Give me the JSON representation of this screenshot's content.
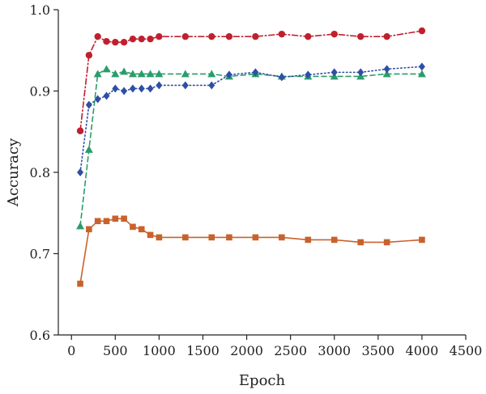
{
  "chart_data": {
    "type": "line",
    "xlabel": "Epoch",
    "ylabel": "Accuracy",
    "xlim": [
      -150,
      4500
    ],
    "ylim": [
      0.6,
      1.0
    ],
    "xticks": [
      0,
      500,
      1000,
      1500,
      2000,
      2500,
      3000,
      3500,
      4000,
      4500
    ],
    "yticks": [
      0.6,
      0.7,
      0.8,
      0.9,
      1.0
    ],
    "xtick_labels": [
      "0",
      "500",
      "1000",
      "1500",
      "2000",
      "2500",
      "3000",
      "3500",
      "4000",
      "4500"
    ],
    "ytick_labels": [
      "0.6",
      "0.7",
      "0.8",
      "0.9",
      "1.0"
    ],
    "grid": false,
    "series": [
      {
        "color": "#c0202e",
        "marker": "circle",
        "dash": "dashdot",
        "x": [
          100,
          200,
          300,
          400,
          500,
          600,
          700,
          800,
          900,
          1000,
          1300,
          1600,
          1800,
          2100,
          2400,
          2700,
          3000,
          3300,
          3600,
          4000
        ],
        "y": [
          0.851,
          0.944,
          0.967,
          0.961,
          0.96,
          0.96,
          0.964,
          0.964,
          0.964,
          0.967,
          0.967,
          0.967,
          0.967,
          0.967,
          0.97,
          0.967,
          0.97,
          0.967,
          0.967,
          0.974
        ]
      },
      {
        "color": "#2a9d6a",
        "marker": "triangle",
        "dash": "dashed",
        "x": [
          100,
          200,
          300,
          400,
          500,
          600,
          700,
          800,
          900,
          1000,
          1300,
          1600,
          1800,
          2100,
          2400,
          2700,
          3000,
          3300,
          3600,
          4000
        ],
        "y": [
          0.734,
          0.828,
          0.921,
          0.927,
          0.921,
          0.924,
          0.921,
          0.921,
          0.921,
          0.921,
          0.921,
          0.921,
          0.918,
          0.921,
          0.918,
          0.918,
          0.918,
          0.918,
          0.921,
          0.921
        ]
      },
      {
        "color": "#2f4fa6",
        "marker": "diamond",
        "dash": "dotted",
        "x": [
          100,
          200,
          300,
          400,
          500,
          600,
          700,
          800,
          900,
          1000,
          1300,
          1600,
          1800,
          2100,
          2400,
          2700,
          3000,
          3300,
          3600,
          4000
        ],
        "y": [
          0.8,
          0.883,
          0.89,
          0.894,
          0.903,
          0.9,
          0.903,
          0.903,
          0.903,
          0.907,
          0.907,
          0.907,
          0.92,
          0.923,
          0.917,
          0.92,
          0.923,
          0.923,
          0.927,
          0.93
        ]
      },
      {
        "color": "#c8622c",
        "marker": "square",
        "dash": "solid",
        "x": [
          100,
          200,
          300,
          400,
          500,
          600,
          700,
          800,
          900,
          1000,
          1300,
          1600,
          1800,
          2100,
          2400,
          2700,
          3000,
          3300,
          3600,
          4000
        ],
        "y": [
          0.663,
          0.73,
          0.74,
          0.74,
          0.743,
          0.743,
          0.733,
          0.73,
          0.723,
          0.72,
          0.72,
          0.72,
          0.72,
          0.72,
          0.72,
          0.717,
          0.717,
          0.714,
          0.714,
          0.717
        ]
      }
    ]
  }
}
